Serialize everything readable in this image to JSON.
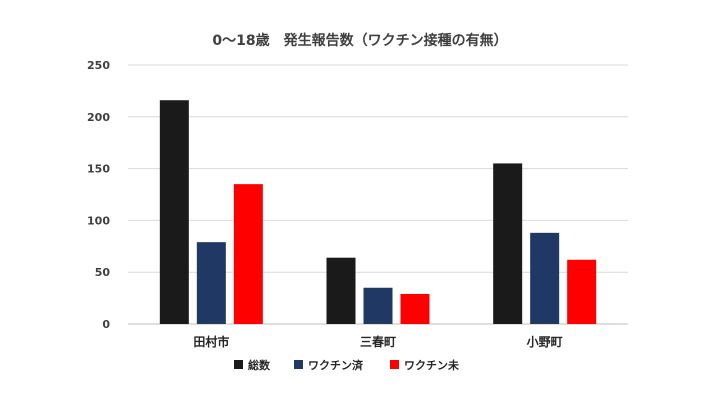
{
  "chart_data": {
    "type": "bar",
    "title": "0〜18歳　発生報告数（ワクチン接種の有無）",
    "categories": [
      "田村市",
      "三春町",
      "小野町"
    ],
    "series": [
      {
        "name": "総数",
        "values": [
          216,
          64,
          155
        ],
        "color": "#1a1a1a"
      },
      {
        "name": "ワクチン済",
        "values": [
          79,
          35,
          88
        ],
        "color": "#203864"
      },
      {
        "name": "ワクチン未",
        "values": [
          135,
          29,
          62
        ],
        "color": "#ff0000"
      }
    ],
    "ylim": [
      0,
      250
    ],
    "yticks": [
      "0",
      "50",
      "100",
      "150",
      "200",
      "250"
    ],
    "grid": true,
    "legend_position": "bottom"
  }
}
